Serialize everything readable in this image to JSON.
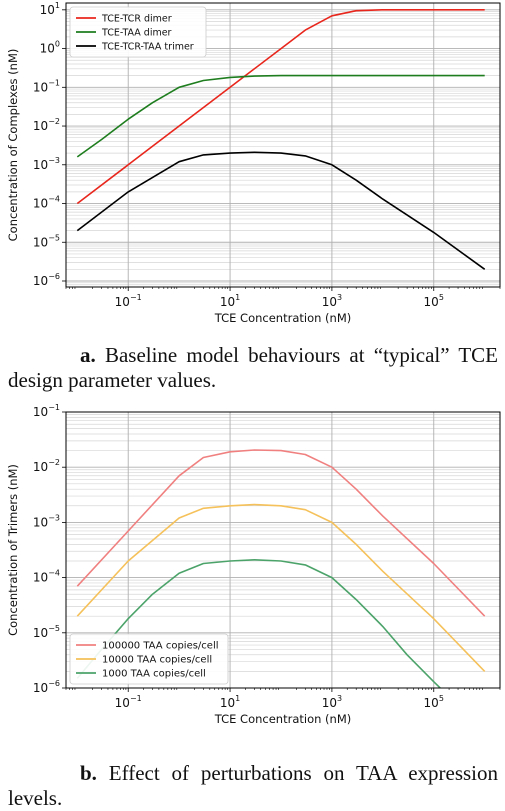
{
  "chart_data": [
    {
      "type": "line",
      "xlabel": "TCE Concentration (nM)",
      "ylabel": "Concentration of Complexes (nM)",
      "xscale": "log",
      "yscale": "log",
      "xlim": [
        0.006,
        2000000
      ],
      "ylim": [
        7e-07,
        15
      ],
      "x_ticks": [
        "10^-1",
        "10^1",
        "10^3",
        "10^5"
      ],
      "y_ticks": [
        "10^-6",
        "10^-5",
        "10^-4",
        "10^-3",
        "10^-2",
        "10^-1",
        "10^0",
        "10^1"
      ],
      "grid": true,
      "legend_position": "top-left",
      "series": [
        {
          "name": "TCE-TCR dimer",
          "color": "#e8261c",
          "x": [
            0.01,
            0.1,
            1,
            10,
            30,
            100,
            300,
            1000,
            3000,
            10000,
            100000,
            1000000
          ],
          "y": [
            0.0001,
            0.001,
            0.01,
            0.1,
            0.3,
            1.0,
            3.0,
            7.0,
            9.5,
            10.0,
            10.0,
            10.0
          ]
        },
        {
          "name": "TCE-TAA dimer",
          "color": "#1e7d1e",
          "x": [
            0.01,
            0.03,
            0.1,
            0.3,
            1,
            3,
            10,
            30,
            100,
            1000,
            10000,
            100000,
            1000000
          ],
          "y": [
            0.0016,
            0.0045,
            0.015,
            0.04,
            0.1,
            0.15,
            0.18,
            0.195,
            0.2,
            0.2,
            0.2,
            0.2,
            0.2
          ]
        },
        {
          "name": "TCE-TCR-TAA trimer",
          "color": "#000000",
          "x": [
            0.01,
            0.1,
            1,
            3,
            10,
            30,
            100,
            300,
            1000,
            3000,
            10000,
            100000,
            1000000
          ],
          "y": [
            2e-05,
            0.0002,
            0.0012,
            0.0018,
            0.002,
            0.0021,
            0.002,
            0.0017,
            0.001,
            0.0004,
            0.00013,
            1.8e-05,
            2e-06
          ]
        }
      ]
    },
    {
      "type": "line",
      "xlabel": "TCE Concentration (nM)",
      "ylabel": "Concentration of Trimers (nM)",
      "xscale": "log",
      "yscale": "log",
      "xlim": [
        0.006,
        2000000
      ],
      "ylim": [
        1e-06,
        0.1
      ],
      "x_ticks": [
        "10^-1",
        "10^1",
        "10^3",
        "10^5"
      ],
      "y_ticks": [
        "10^-6",
        "10^-5",
        "10^-4",
        "10^-3",
        "10^-2",
        "10^-1"
      ],
      "grid": true,
      "legend_position": "bottom-left",
      "series": [
        {
          "name": "100000 TAA copies/cell",
          "color": "#f08080",
          "x": [
            0.01,
            0.1,
            1,
            3,
            10,
            30,
            100,
            300,
            1000,
            3000,
            10000,
            100000,
            1000000
          ],
          "y": [
            7e-05,
            0.0007,
            0.007,
            0.015,
            0.019,
            0.0205,
            0.02,
            0.017,
            0.01,
            0.004,
            0.0013,
            0.00018,
            2e-05
          ]
        },
        {
          "name": "10000 TAA copies/cell",
          "color": "#f5c15a",
          "x": [
            0.01,
            0.1,
            1,
            3,
            10,
            30,
            100,
            300,
            1000,
            3000,
            10000,
            100000,
            1000000
          ],
          "y": [
            2e-05,
            0.0002,
            0.0012,
            0.0018,
            0.002,
            0.0021,
            0.002,
            0.0017,
            0.001,
            0.0004,
            0.00013,
            1.8e-05,
            2e-06
          ]
        },
        {
          "name": "1000 TAA copies/cell",
          "color": "#4ca36a",
          "x": [
            0.01,
            0.03,
            0.1,
            0.3,
            1,
            3,
            10,
            30,
            100,
            300,
            1000,
            3000,
            10000,
            30000,
            100000,
            200000
          ],
          "y": [
            1.5e-06,
            5e-06,
            1.8e-05,
            5e-05,
            0.00012,
            0.00018,
            0.0002,
            0.00021,
            0.0002,
            0.00017,
            0.0001,
            4e-05,
            1.3e-05,
            4e-06,
            1.3e-06,
            7e-07
          ]
        }
      ]
    }
  ],
  "captions": {
    "a_label": "a.",
    "a_text": "Baseline model behaviours at “typical” TCE design parameter values.",
    "b_label": "b.",
    "b_text": "Effect of perturbations on TAA expression levels."
  }
}
